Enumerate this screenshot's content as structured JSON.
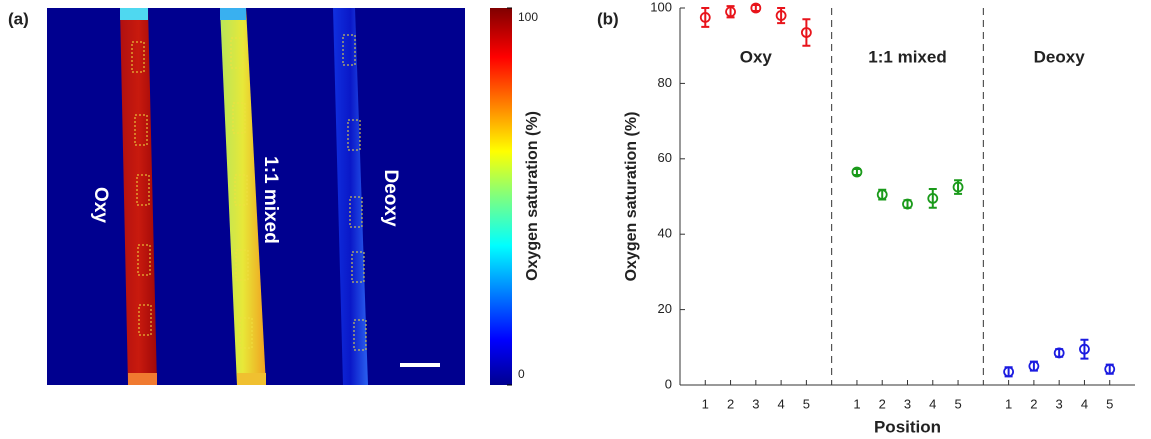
{
  "chart_data": [
    {
      "type": "image",
      "label": "(a)",
      "annotations": [
        "Oxy",
        "1:1 mixed",
        "Deoxy"
      ],
      "colorbar": {
        "label": "Oxygen saturation (%)",
        "lim": [
          0,
          100
        ],
        "ticks": [
          0,
          100
        ]
      }
    },
    {
      "type": "errorbar",
      "label": "(b)",
      "x_label": "Position",
      "y_label": "Oxygen saturation (%)",
      "categories": [
        "1",
        "2",
        "3",
        "4",
        "5"
      ],
      "ylim": [
        0,
        100
      ],
      "yticks": [
        0,
        20,
        40,
        60,
        80,
        100
      ],
      "series": [
        {
          "name": "Oxy",
          "color": "#e8141b",
          "values": [
            97.5,
            99,
            100,
            98,
            93.5
          ],
          "errors": [
            2.5,
            1.5,
            0.8,
            2,
            3.5
          ]
        },
        {
          "name": "1:1 mixed",
          "color": "#1a9a1a",
          "values": [
            56.5,
            50.5,
            48,
            49.5,
            52.5
          ],
          "errors": [
            0.8,
            1.3,
            1,
            2.5,
            1.8
          ]
        },
        {
          "name": "Deoxy",
          "color": "#1b1be0",
          "values": [
            3.5,
            5,
            8.5,
            9.5,
            4.2
          ],
          "errors": [
            1.2,
            1.2,
            1,
            2.5,
            1.2
          ]
        }
      ]
    }
  ]
}
